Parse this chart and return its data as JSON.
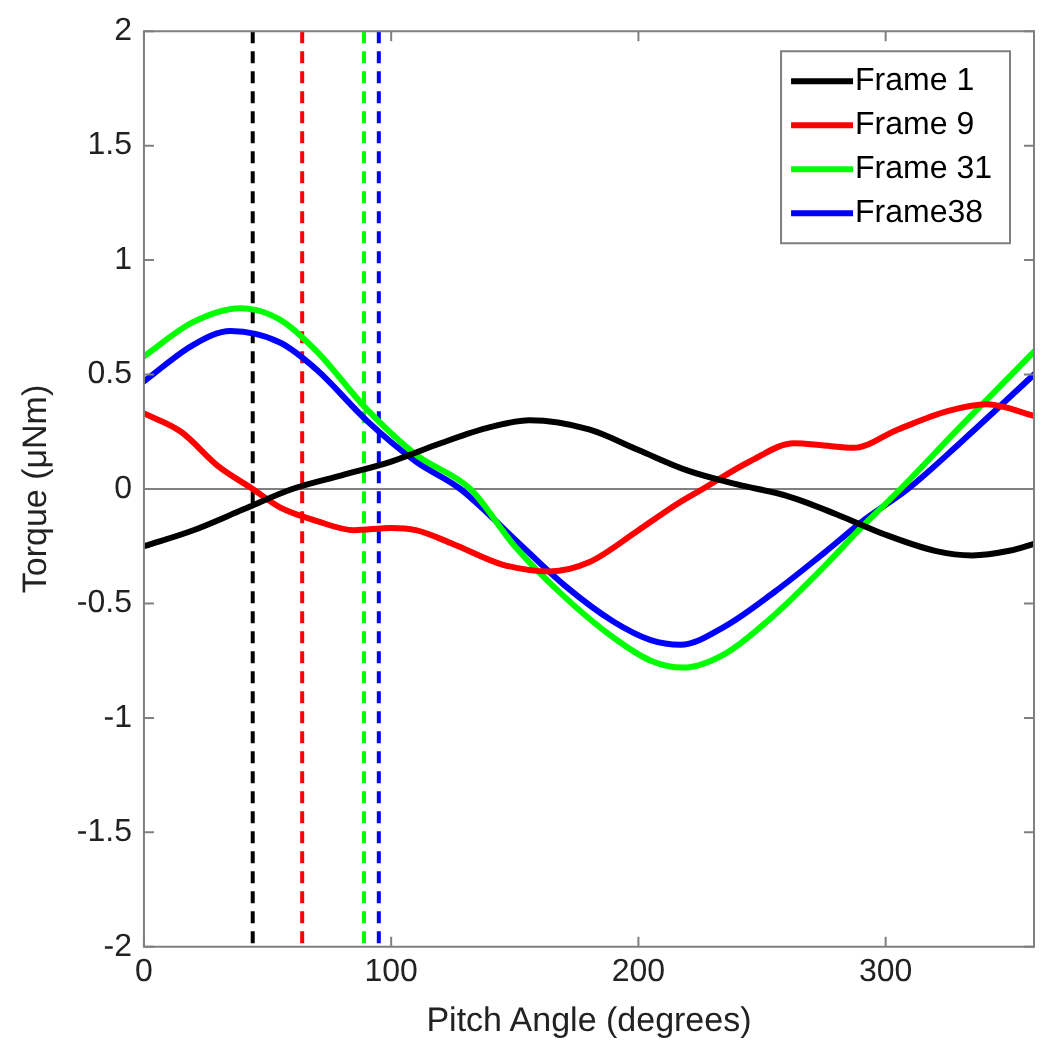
{
  "chart_data": {
    "type": "line",
    "xlabel": "Pitch Angle (degrees)",
    "ylabel": "Torque (μNm)",
    "xlim": [
      0,
      360
    ],
    "xticks": [
      0,
      100,
      200,
      300
    ],
    "ylim": [
      -2,
      2
    ],
    "yticks": [
      -2,
      -1.5,
      -1,
      -0.5,
      0,
      0.5,
      1,
      1.5,
      2
    ],
    "grid": false,
    "legend": "top right",
    "marker": "none",
    "line_style": "solid",
    "series": [
      {
        "name": "Frame 1",
        "color": "#000000",
        "x": [
          0,
          20,
          40,
          60,
          80,
          100,
          120,
          140,
          156,
          180,
          200,
          220,
          240,
          260,
          280,
          300,
          320,
          335,
          350,
          360
        ],
        "values": [
          -0.25,
          -0.18,
          -0.09,
          0.0,
          0.06,
          0.12,
          0.2,
          0.27,
          0.3,
          0.26,
          0.17,
          0.08,
          0.02,
          -0.03,
          -0.11,
          -0.2,
          -0.27,
          -0.29,
          -0.27,
          -0.24
        ]
      },
      {
        "name": "Frame 9",
        "color": "#ff0000",
        "x": [
          0,
          15,
          30,
          44,
          55,
          70,
          85,
          100,
          110,
          125,
          145,
          164,
          180,
          200,
          215,
          226,
          245,
          263,
          275,
          287,
          305,
          325,
          341,
          360
        ],
        "values": [
          0.33,
          0.25,
          0.1,
          0,
          -0.08,
          -0.14,
          -0.18,
          -0.17,
          -0.18,
          -0.24,
          -0.33,
          -0.36,
          -0.32,
          -0.18,
          -0.07,
          0,
          0.12,
          0.2,
          0.19,
          0.18,
          0.26,
          0.34,
          0.37,
          0.32
        ]
      },
      {
        "name": "Frame 31",
        "color": "#00ff00",
        "x": [
          0,
          20,
          39,
          55,
          70,
          90,
          110,
          132,
          150,
          170,
          190,
          205,
          218,
          235,
          255,
          275,
          290,
          306,
          330,
          360
        ],
        "values": [
          0.58,
          0.73,
          0.79,
          0.74,
          0.6,
          0.35,
          0.15,
          0,
          -0.25,
          -0.47,
          -0.65,
          -0.75,
          -0.78,
          -0.72,
          -0.55,
          -0.34,
          -0.17,
          0,
          0.27,
          0.6
        ]
      },
      {
        "name": "Frame38",
        "color": "#0000ff",
        "x": [
          0,
          20,
          35,
          55,
          70,
          90,
          110,
          128,
          150,
          170,
          190,
          205,
          217,
          235,
          255,
          275,
          292,
          309,
          330,
          360
        ],
        "values": [
          0.47,
          0.63,
          0.69,
          0.64,
          0.52,
          0.3,
          0.12,
          0,
          -0.22,
          -0.42,
          -0.58,
          -0.66,
          -0.68,
          -0.6,
          -0.45,
          -0.28,
          -0.13,
          0,
          0.2,
          0.5
        ]
      }
    ],
    "ref_lines": [
      {
        "axis": "y",
        "value": 0,
        "color": "#808080",
        "line_style": "solid"
      },
      {
        "axis": "x",
        "value": 44,
        "color": "#000000",
        "line_style": "dashed"
      },
      {
        "axis": "x",
        "value": 64,
        "color": "#ff0000",
        "line_style": "dashed"
      },
      {
        "axis": "x",
        "value": 89,
        "color": "#00ff00",
        "line_style": "dashed"
      },
      {
        "axis": "x",
        "value": 95,
        "color": "#0000ff",
        "line_style": "dashed"
      }
    ]
  }
}
